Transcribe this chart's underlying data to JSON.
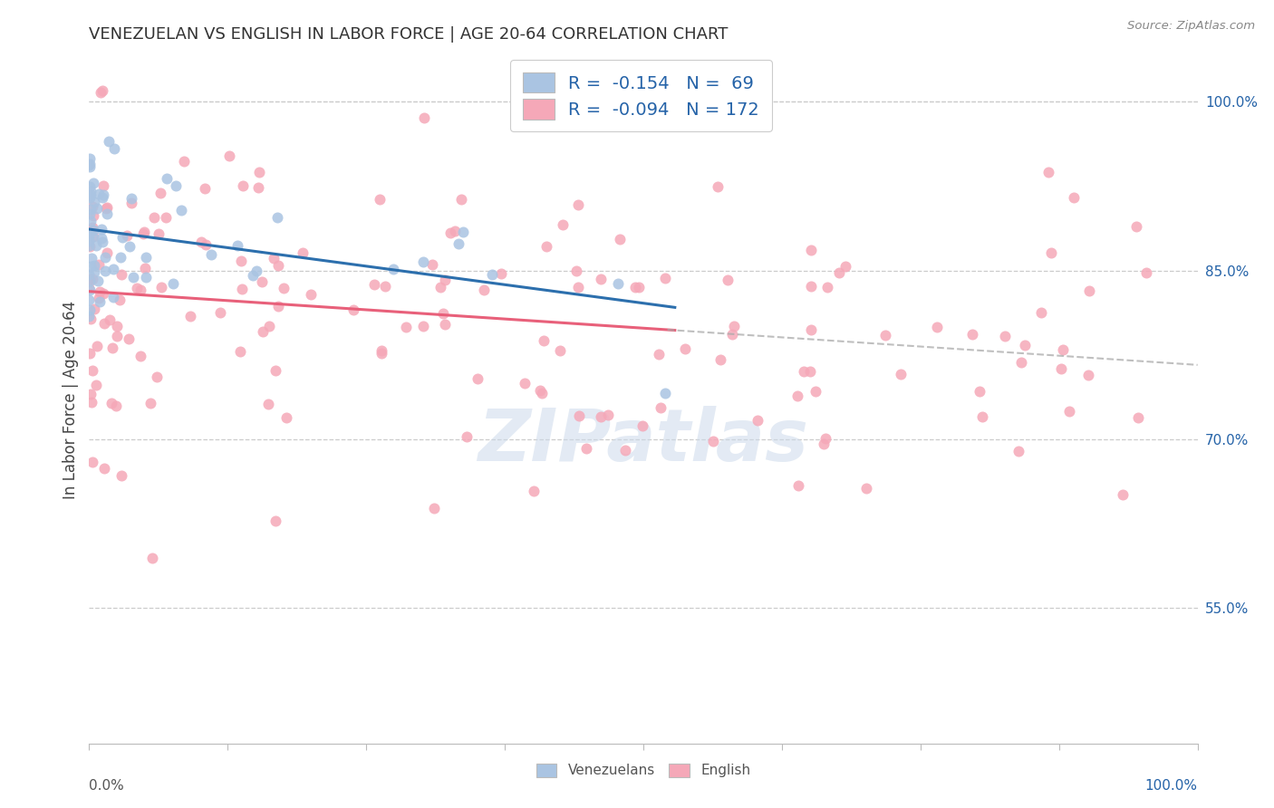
{
  "title": "VENEZUELAN VS ENGLISH IN LABOR FORCE | AGE 20-64 CORRELATION CHART",
  "source": "Source: ZipAtlas.com",
  "ylabel": "In Labor Force | Age 20-64",
  "right_yticks": [
    "100.0%",
    "85.0%",
    "70.0%",
    "55.0%"
  ],
  "right_ytick_vals": [
    1.0,
    0.85,
    0.7,
    0.55
  ],
  "xlim": [
    0.0,
    1.0
  ],
  "ylim": [
    0.43,
    1.04
  ],
  "venezuelan_color": "#aac4e2",
  "english_color": "#f5a8b8",
  "venezuelan_line_color": "#2c6fad",
  "english_line_color": "#e8607a",
  "dashed_line_color": "#aaaaaa",
  "venezuelan_R": -0.154,
  "venezuelan_N": 69,
  "english_R": -0.094,
  "english_N": 172,
  "watermark": "ZIPatlas",
  "title_fontsize": 13,
  "legend_color": "#2563a8",
  "scatter_size": 75,
  "scatter_alpha": 0.85,
  "legend_label_ven": "R =  -0.154   N =  69",
  "legend_label_eng": "R =  -0.094   N = 172"
}
